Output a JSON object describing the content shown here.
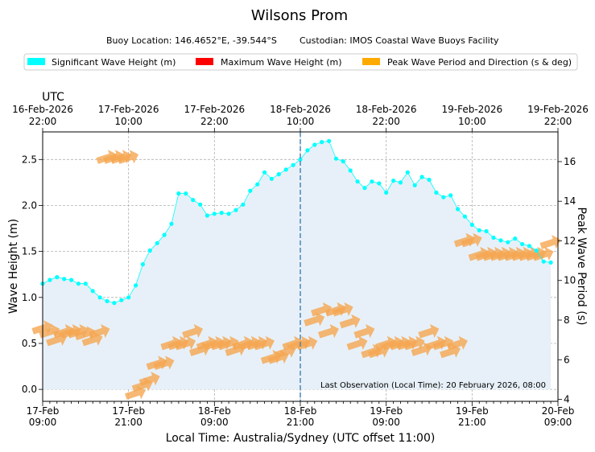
{
  "chart_data": {
    "type": "line",
    "title": "Wilsons Prom",
    "subtitle_location": "Buoy Location: 146.4652°E, -39.544°S",
    "subtitle_custodian": "Custodian: IMOS Coastal Wave Buoys Facility",
    "legend": [
      {
        "label": "Significant Wave Height (m)",
        "color": "#00ffff"
      },
      {
        "label": "Maximum Wave Height (m)",
        "color": "#ff0000"
      },
      {
        "label": "Peak Wave Period and Direction (s & deg)",
        "color": "#ffaa00"
      }
    ],
    "xlabel": "Local Time: Australia/Sydney (UTC offset 11:00)",
    "ylabel": "Wave Height (m)",
    "y2label": "Peak Wave Period (s)",
    "top_axis_title": "UTC",
    "xlim": [
      0,
      72
    ],
    "ylim": [
      -0.13,
      2.8
    ],
    "y2lim": [
      3.9,
      17.5
    ],
    "yticks": [
      "0.0",
      "0.5",
      "1.0",
      "1.5",
      "2.0",
      "2.5"
    ],
    "y2ticks": [
      "4",
      "6",
      "8",
      "10",
      "12",
      "14",
      "16"
    ],
    "xticks": [
      {
        "h": 0,
        "date": "17-Feb",
        "time": "09:00"
      },
      {
        "h": 12,
        "date": "17-Feb",
        "time": "21:00"
      },
      {
        "h": 24,
        "date": "18-Feb",
        "time": "09:00"
      },
      {
        "h": 36,
        "date": "18-Feb",
        "time": "21:00"
      },
      {
        "h": 48,
        "date": "19-Feb",
        "time": "09:00"
      },
      {
        "h": 60,
        "date": "19-Feb",
        "time": "21:00"
      },
      {
        "h": 72,
        "date": "20-Feb",
        "time": "09:00"
      }
    ],
    "top_ticks": [
      {
        "h": 0,
        "date": "16-Feb-2026",
        "time": "22:00"
      },
      {
        "h": 12,
        "date": "17-Feb-2026",
        "time": "10:00"
      },
      {
        "h": 24,
        "date": "17-Feb-2026",
        "time": "22:00"
      },
      {
        "h": 36,
        "date": "18-Feb-2026",
        "time": "10:00"
      },
      {
        "h": 48,
        "date": "18-Feb-2026",
        "time": "22:00"
      },
      {
        "h": 60,
        "date": "19-Feb-2026",
        "time": "10:00"
      },
      {
        "h": 72,
        "date": "19-Feb-2026",
        "time": "22:00"
      }
    ],
    "marker_line_h": 36,
    "annotation": "Last Observation (Local Time): 20 February 2026, 08:00",
    "significant_wave_height": {
      "x": [
        0,
        1,
        2,
        3,
        4,
        5,
        6,
        7,
        8,
        9,
        10,
        11,
        12,
        13,
        14,
        15,
        16,
        17,
        18,
        19,
        20,
        21,
        22,
        23,
        24,
        25,
        26,
        27,
        28,
        29,
        30,
        31,
        32,
        33,
        34,
        35,
        36,
        37,
        38,
        39,
        40,
        41,
        42,
        43,
        44,
        45,
        46,
        47,
        48,
        49,
        50,
        51,
        52,
        53,
        54,
        55,
        56,
        57,
        58,
        59,
        60,
        61,
        62,
        63,
        64,
        65,
        66,
        67,
        68,
        69,
        70,
        71
      ],
      "values": [
        1.15,
        1.19,
        1.22,
        1.2,
        1.19,
        1.15,
        1.15,
        1.07,
        1.0,
        0.96,
        0.94,
        0.97,
        1.0,
        1.13,
        1.36,
        1.51,
        1.59,
        1.68,
        1.8,
        2.13,
        2.13,
        2.06,
        2.01,
        1.89,
        1.91,
        1.92,
        1.91,
        1.95,
        2.01,
        2.16,
        2.23,
        2.36,
        2.29,
        2.34,
        2.39,
        2.44,
        2.5,
        2.6,
        2.66,
        2.69,
        2.7,
        2.51,
        2.48,
        2.38,
        2.26,
        2.19,
        2.26,
        2.24,
        2.14,
        2.27,
        2.25,
        2.36,
        2.22,
        2.31,
        2.28,
        2.14,
        2.09,
        2.11,
        1.96,
        1.88,
        1.79,
        1.73,
        1.72,
        1.65,
        1.62,
        1.6,
        1.64,
        1.58,
        1.56,
        1.51,
        1.39,
        1.38
      ]
    },
    "peak_period": {
      "x": [
        0,
        1,
        2,
        3,
        4,
        5,
        6,
        7,
        8,
        9,
        10,
        11,
        12,
        13,
        14,
        15,
        16,
        17,
        18,
        19,
        20,
        21,
        22,
        23,
        24,
        25,
        26,
        27,
        28,
        29,
        30,
        31,
        32,
        33,
        34,
        35,
        36,
        37,
        38,
        39,
        40,
        41,
        42,
        43,
        44,
        45,
        46,
        47,
        48,
        49,
        50,
        51,
        52,
        53,
        54,
        55,
        56,
        57,
        58,
        59,
        60,
        61,
        62,
        63,
        64,
        65,
        66,
        67,
        68,
        69,
        70,
        71
      ],
      "values": [
        7.6,
        7.4,
        7.0,
        7.4,
        7.4,
        7.4,
        7.3,
        7.0,
        7.4,
        16.2,
        16.2,
        16.2,
        16.2,
        4.3,
        4.7,
        5.0,
        5.8,
        5.8,
        6.8,
        6.8,
        6.8,
        7.4,
        6.5,
        6.8,
        6.8,
        6.8,
        6.8,
        6.5,
        6.8,
        6.8,
        6.8,
        6.8,
        6.1,
        6.1,
        6.4,
        6.8,
        6.8,
        6.8,
        8.0,
        8.5,
        7.4,
        8.5,
        8.5,
        7.9,
        6.8,
        7.4,
        6.4,
        6.4,
        6.8,
        6.8,
        6.8,
        6.8,
        6.8,
        6.5,
        7.4,
        6.8,
        6.8,
        6.4,
        6.8,
        12.0,
        12.0,
        11.3,
        11.3,
        11.3,
        11.3,
        11.3,
        11.3,
        11.3,
        11.3,
        11.3,
        11.3,
        11.9
      ]
    }
  }
}
